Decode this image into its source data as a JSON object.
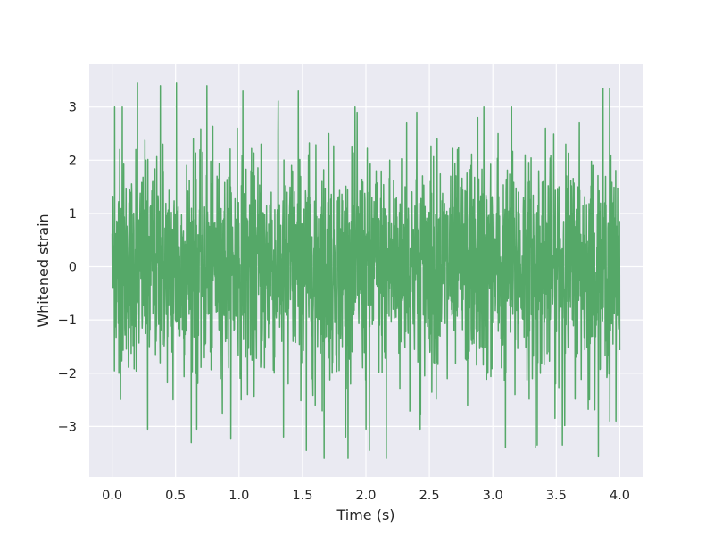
{
  "chart_data": {
    "type": "line",
    "title": "",
    "xlabel": "Time (s)",
    "ylabel": "Whitened strain",
    "xlim": [
      -0.18,
      4.18
    ],
    "ylim": [
      -3.95,
      3.8
    ],
    "x_ticks": [
      0.0,
      0.5,
      1.0,
      1.5,
      2.0,
      2.5,
      3.0,
      3.5,
      4.0
    ],
    "x_tick_labels": [
      "0.0",
      "0.5",
      "1.0",
      "1.5",
      "2.0",
      "2.5",
      "3.0",
      "3.5",
      "4.0"
    ],
    "y_ticks": [
      -3,
      -2,
      -1,
      0,
      1,
      2,
      3
    ],
    "y_tick_labels": [
      "−3",
      "−2",
      "−1",
      "0",
      "1",
      "2",
      "3"
    ],
    "grid": true,
    "legend": "none",
    "colors": {
      "series": "#55a868",
      "background": "#eaeaf2",
      "grid": "#ffffff"
    },
    "series": [
      {
        "x_range": [
          0.0,
          4.0
        ],
        "y_range": [
          -3.6,
          3.45
        ],
        "peaks": [
          {
            "x": 0.02,
            "y": 3.0
          },
          {
            "x": 0.06,
            "y": 2.2
          },
          {
            "x": 0.2,
            "y": 3.45
          },
          {
            "x": 0.38,
            "y": 3.4
          },
          {
            "x": 1.03,
            "y": 3.3
          },
          {
            "x": 1.93,
            "y": 2.9
          },
          {
            "x": 2.93,
            "y": 3.0
          },
          {
            "x": 3.92,
            "y": 3.35
          }
        ],
        "troughs": [
          {
            "x": 0.0,
            "y": -2.0
          },
          {
            "x": 0.28,
            "y": -3.05
          },
          {
            "x": 1.35,
            "y": -3.2
          },
          {
            "x": 1.53,
            "y": -3.45
          },
          {
            "x": 1.67,
            "y": -3.6
          },
          {
            "x": 2.0,
            "y": -3.05
          },
          {
            "x": 3.1,
            "y": -3.4
          },
          {
            "x": 3.35,
            "y": -3.35
          },
          {
            "x": 3.97,
            "y": -2.9
          }
        ],
        "values": [
          0.62,
          -2.0,
          3.0,
          -0.4,
          1.2,
          -1.1,
          2.2,
          -0.7,
          0.3,
          2.0,
          -1.5,
          1.6,
          -1.4,
          0.2,
          2.3,
          -0.9,
          1.1,
          -2.5,
          3.45,
          -1.3,
          0.6,
          1.9,
          -0.8,
          2.4,
          -3.05,
          1.2,
          -0.3,
          3.4,
          -1.6,
          0.4,
          1.7,
          -2.1,
          0.9,
          -0.5,
          1.5,
          -1.2,
          2.6,
          -0.6,
          0.2,
          -2.4,
          1.8,
          -1.0,
          0.7,
          2.3,
          -1.9,
          0.1,
          1.4,
          -1.7,
          2.5,
          -0.9,
          0.5,
          -2.2,
          1.9,
          -0.4,
          3.3,
          -1.8,
          0.6,
          2.1,
          -1.3,
          -2.6,
          0.9,
          1.6,
          -0.7,
          2.5,
          -2.0,
          0.3,
          1.2,
          -1.5,
          -3.2,
          0.8,
          2.2,
          -0.6,
          1.0,
          -1.9,
          -3.45,
          0.5,
          1.8,
          -1.1,
          0.4,
          -3.6,
          2.0,
          -0.8,
          1.3,
          -2.3,
          0.2,
          2.7,
          -1.4,
          0.7,
          2.9,
          -3.05,
          1.1,
          -0.5,
          1.6,
          -1.8,
          2.4,
          -0.9,
          0.3,
          -2.1,
          1.7,
          -1.2,
          2.2,
          -0.4,
          0.8,
          -2.6,
          1.9,
          -0.7,
          2.8,
          -1.5,
          0.6,
          -2.0,
          1.3,
          -0.3,
          2.5,
          -1.9,
          0.9,
          -0.6,
          3.0,
          -2.4,
          1.4,
          -0.8,
          2.1,
          -1.3,
          0.5,
          -3.4,
          1.8,
          -0.9,
          2.6,
          -1.6,
          0.2,
          -2.2,
          1.5,
          -3.35,
          2.3,
          -0.5,
          1.0,
          -1.7,
          2.7,
          -0.8,
          0.4,
          -2.5,
          1.9,
          -1.1,
          0.6,
          3.35,
          -1.4,
          -2.9,
          1.2,
          0.4
        ]
      }
    ]
  }
}
